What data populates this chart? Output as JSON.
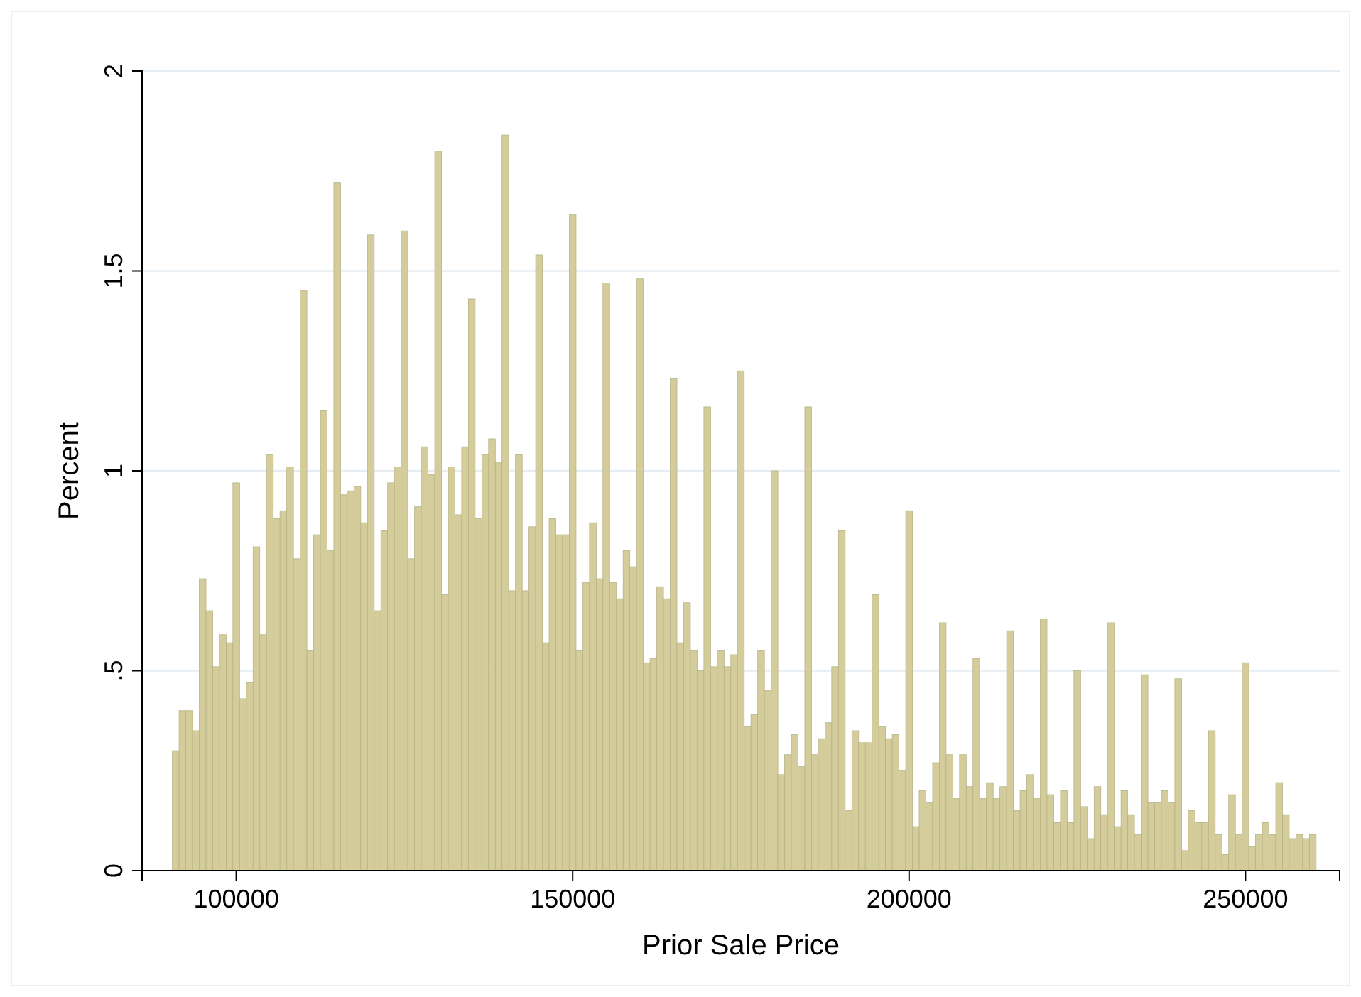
{
  "chart_data": {
    "type": "histogram",
    "xlabel": "Prior Sale Price",
    "ylabel": "Percent",
    "color": "#d4cd9b",
    "bins": [
      90500,
      91500,
      92500,
      93500,
      94500,
      95500,
      96500,
      97500,
      98500,
      99500,
      100500,
      101500,
      102500,
      103500,
      104500,
      105500,
      106500,
      107500,
      108500,
      109500,
      110500,
      111500,
      112500,
      113500,
      114500,
      115500,
      116500,
      117500,
      118500,
      119500,
      120500,
      121500,
      122500,
      123500,
      124500,
      125500,
      126500,
      127500,
      128500,
      129500,
      130500,
      131500,
      132500,
      133500,
      134500,
      135500,
      136500,
      137500,
      138500,
      139500,
      140500,
      141500,
      142500,
      143500,
      144500,
      145500,
      146500,
      147500,
      148500,
      149500,
      150500,
      151500,
      152500,
      153500,
      154500,
      155500,
      156500,
      157500,
      158500,
      159500,
      160500,
      161500,
      162500,
      163500,
      164500,
      165500,
      166500,
      167500,
      168500,
      169500,
      170500,
      171500,
      172500,
      173500,
      174500,
      175500,
      176500,
      177500,
      178500,
      179500,
      180500,
      181500,
      182500,
      183500,
      184500,
      185500,
      186500,
      187500,
      188500,
      189500,
      190500,
      191500,
      192500,
      193500,
      194500,
      195500,
      196500,
      197500,
      198500,
      199500,
      200500,
      201500,
      202500,
      203500,
      204500,
      205500,
      206500,
      207500,
      208500,
      209500,
      210500,
      211500,
      212500,
      213500,
      214500,
      215500,
      216500,
      217500,
      218500,
      219500,
      220500,
      221500,
      222500,
      223500,
      224500,
      225500,
      226500,
      227500,
      228500,
      229500,
      230500,
      231500,
      232500,
      233500,
      234500,
      235500,
      236500,
      237500,
      238500,
      239500,
      240500,
      241500,
      242500,
      243500,
      244500,
      245500,
      246500,
      247500,
      248500,
      249500,
      250500,
      251500,
      252500,
      253500,
      254500,
      255500,
      256500,
      257500,
      258500,
      259500,
      260500
    ],
    "values": [
      0.3,
      0.4,
      0.4,
      0.35,
      0.73,
      0.65,
      0.51,
      0.59,
      0.57,
      0.97,
      0.43,
      0.47,
      0.81,
      0.59,
      1.04,
      0.88,
      0.9,
      1.01,
      0.78,
      1.45,
      0.55,
      0.84,
      1.15,
      0.8,
      1.72,
      0.94,
      0.95,
      0.96,
      0.87,
      1.59,
      0.65,
      0.85,
      0.97,
      1.01,
      1.6,
      0.78,
      0.91,
      1.06,
      0.99,
      1.8,
      0.69,
      1.01,
      0.89,
      1.06,
      1.43,
      0.88,
      1.04,
      1.08,
      1.02,
      1.84,
      0.7,
      1.04,
      0.7,
      0.86,
      1.54,
      0.57,
      0.88,
      0.84,
      0.84,
      1.64,
      0.55,
      0.72,
      0.87,
      0.73,
      1.47,
      0.72,
      0.68,
      0.8,
      0.76,
      1.48,
      0.52,
      0.53,
      0.71,
      0.68,
      1.23,
      0.57,
      0.67,
      0.55,
      0.5,
      1.16,
      0.51,
      0.55,
      0.51,
      0.54,
      1.25,
      0.36,
      0.39,
      0.55,
      0.45,
      1.0,
      0.24,
      0.29,
      0.34,
      0.26,
      1.16,
      0.29,
      0.33,
      0.37,
      0.51,
      0.85,
      0.15,
      0.35,
      0.32,
      0.32,
      0.69,
      0.36,
      0.33,
      0.34,
      0.25,
      0.9,
      0.11,
      0.2,
      0.17,
      0.27,
      0.62,
      0.29,
      0.18,
      0.29,
      0.21,
      0.53,
      0.18,
      0.22,
      0.18,
      0.21,
      0.6,
      0.15,
      0.2,
      0.24,
      0.18,
      0.63,
      0.19,
      0.12,
      0.2,
      0.12,
      0.5,
      0.16,
      0.08,
      0.21,
      0.14,
      0.62,
      0.11,
      0.2,
      0.14,
      0.09,
      0.49,
      0.17,
      0.17,
      0.2,
      0.17,
      0.48,
      0.05,
      0.15,
      0.12,
      0.12,
      0.35,
      0.09,
      0.04,
      0.19,
      0.09,
      0.52,
      0.06,
      0.09,
      0.12,
      0.09,
      0.22,
      0.14,
      0.08,
      0.09,
      0.08,
      0.09
    ],
    "xlim": [
      86000,
      264000
    ],
    "xticks": [
      100000,
      150000,
      200000,
      250000
    ],
    "ylim": [
      0,
      2
    ],
    "yticks": [
      0,
      {
        "value": 0.5,
        "label": ".5"
      },
      1,
      1.5,
      2
    ],
    "grid": "y"
  }
}
